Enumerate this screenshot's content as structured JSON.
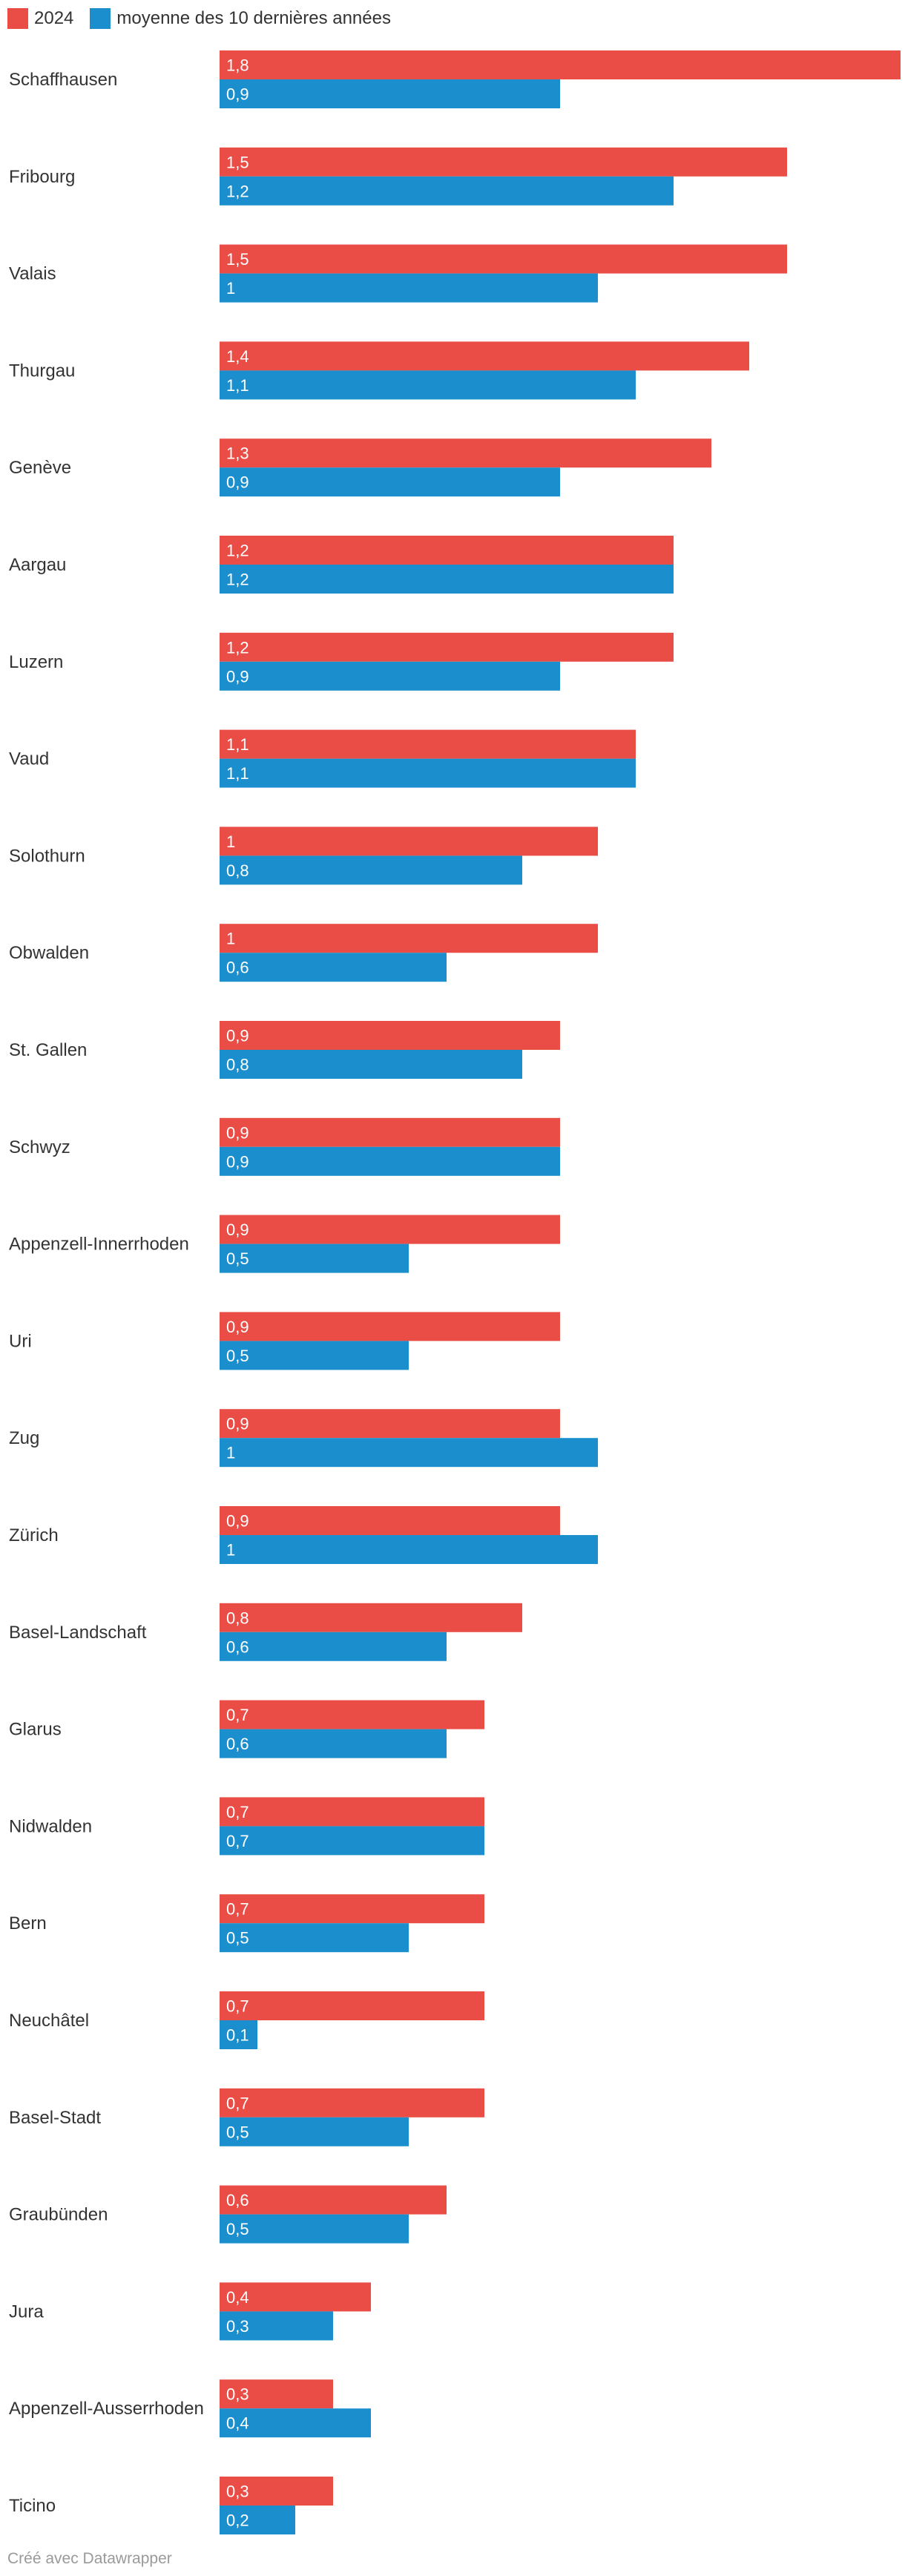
{
  "chart_data": {
    "type": "bar",
    "orientation": "horizontal",
    "title": "",
    "xlabel": "",
    "ylabel": "",
    "xlim": [
      0,
      1.8
    ],
    "grid": false,
    "legend_position": "top-left",
    "categories": [
      "Schaffhausen",
      "Fribourg",
      "Valais",
      "Thurgau",
      "Genève",
      "Aargau",
      "Luzern",
      "Vaud",
      "Solothurn",
      "Obwalden",
      "St. Gallen",
      "Schwyz",
      "Appenzell-Innerrhoden",
      "Uri",
      "Zug",
      "Zürich",
      "Basel-Landschaft",
      "Glarus",
      "Nidwalden",
      "Bern",
      "Neuchâtel",
      "Basel-Stadt",
      "Graubünden",
      "Jura",
      "Appenzell-Ausserrhoden",
      "Ticino"
    ],
    "series": [
      {
        "name": "2024",
        "color": "#ea4c46",
        "values": [
          1.8,
          1.5,
          1.5,
          1.4,
          1.3,
          1.2,
          1.2,
          1.1,
          1,
          1,
          0.9,
          0.9,
          0.9,
          0.9,
          0.9,
          0.9,
          0.8,
          0.7,
          0.7,
          0.7,
          0.7,
          0.7,
          0.6,
          0.4,
          0.3,
          0.3
        ],
        "labels": [
          "1,8",
          "1,5",
          "1,5",
          "1,4",
          "1,3",
          "1,2",
          "1,2",
          "1,1",
          "1",
          "1",
          "0,9",
          "0,9",
          "0,9",
          "0,9",
          "0,9",
          "0,9",
          "0,8",
          "0,7",
          "0,7",
          "0,7",
          "0,7",
          "0,7",
          "0,6",
          "0,4",
          "0,3",
          "0,3"
        ]
      },
      {
        "name": "moyenne des 10 dernières années",
        "color": "#1b8fcd",
        "values": [
          0.9,
          1.2,
          1,
          1.1,
          0.9,
          1.2,
          0.9,
          1.1,
          0.8,
          0.6,
          0.8,
          0.9,
          0.5,
          0.5,
          1,
          1,
          0.6,
          0.6,
          0.7,
          0.5,
          0.1,
          0.5,
          0.5,
          0.3,
          0.4,
          0.2
        ],
        "labels": [
          "0,9",
          "1,2",
          "1",
          "1,1",
          "0,9",
          "1,2",
          "0,9",
          "1,1",
          "0,8",
          "0,6",
          "0,8",
          "0,9",
          "0,5",
          "0,5",
          "1",
          "1",
          "0,6",
          "0,6",
          "0,7",
          "0,5",
          "0,1",
          "0,5",
          "0,5",
          "0,3",
          "0,4",
          "0,2"
        ]
      }
    ]
  },
  "footer": {
    "credit": "Créé avec Datawrapper"
  }
}
